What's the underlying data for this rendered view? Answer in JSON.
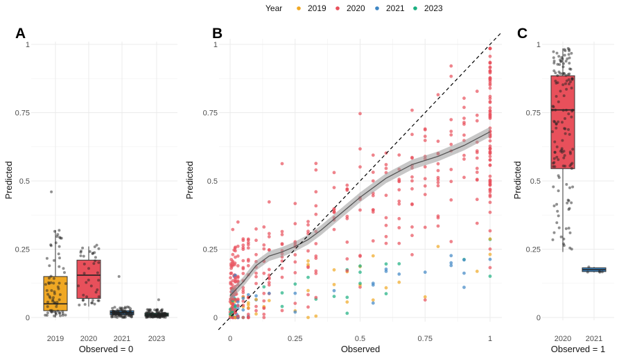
{
  "legend": {
    "title": "Year",
    "entries": [
      {
        "label": "2019",
        "color": "#F0A824"
      },
      {
        "label": "2020",
        "color": "#E8505B"
      },
      {
        "label": "2021",
        "color": "#3E86C4"
      },
      {
        "label": "2023",
        "color": "#1BAF80"
      }
    ]
  },
  "chart_data": [
    {
      "panel": "A",
      "type": "box",
      "xlabel": "Observed = 0",
      "ylabel": "Predicted",
      "ylim": [
        0,
        1
      ],
      "yticks": [
        "0",
        "0.25",
        "0.5",
        "0.75",
        "1"
      ],
      "categories": [
        "2019",
        "2020",
        "2021",
        "2023"
      ],
      "boxes": [
        {
          "category": "2019",
          "color": "#F0A824",
          "q1": 0.025,
          "median": 0.05,
          "q3": 0.15,
          "whisker_low": 0.0,
          "whisker_high": 0.32,
          "n_points": 70,
          "point_max": 0.46
        },
        {
          "category": "2020",
          "color": "#E8505B",
          "q1": 0.07,
          "median": 0.155,
          "q3": 0.21,
          "whisker_low": 0.04,
          "whisker_high": 0.26,
          "n_points": 40,
          "point_max": 0.265
        },
        {
          "category": "2021",
          "color": "#3E86C4",
          "q1": 0.01,
          "median": 0.018,
          "q3": 0.025,
          "whisker_low": 0.0,
          "whisker_high": 0.04,
          "n_points": 80,
          "point_max": 0.15
        },
        {
          "category": "2023",
          "color": "#1BAF80",
          "q1": 0.005,
          "median": 0.01,
          "q3": 0.016,
          "whisker_low": 0.0,
          "whisker_high": 0.03,
          "n_points": 100,
          "point_max": 0.065
        }
      ]
    },
    {
      "panel": "B",
      "type": "scatter",
      "xlabel": "Observed",
      "ylabel": "Predicted",
      "xlim": [
        0,
        1
      ],
      "ylim": [
        0,
        1
      ],
      "xticks": [
        "0",
        "0.25",
        "0.5",
        "0.75",
        "1"
      ],
      "yticks": [
        "0",
        "0.25",
        "0.5",
        "0.75",
        "1"
      ],
      "x_levels": [
        0,
        0.01,
        0.02,
        0.03,
        0.05,
        0.07,
        0.1,
        0.13,
        0.15,
        0.2,
        0.25,
        0.3,
        0.33,
        0.4,
        0.45,
        0.5,
        0.55,
        0.6,
        0.65,
        0.7,
        0.75,
        0.8,
        0.85,
        0.9,
        0.95,
        1
      ],
      "reference_line": "y = x (dashed)",
      "smooth_line": {
        "x": [
          0,
          0.05,
          0.1,
          0.15,
          0.2,
          0.25,
          0.3,
          0.35,
          0.4,
          0.5,
          0.6,
          0.7,
          0.8,
          0.9,
          1
        ],
        "y": [
          0.08,
          0.13,
          0.19,
          0.225,
          0.24,
          0.26,
          0.285,
          0.32,
          0.36,
          0.44,
          0.51,
          0.56,
          0.59,
          0.63,
          0.68
        ],
        "band_halfwidth": 0.018
      },
      "series_color_share": [
        {
          "name": "2020",
          "color": "#E8505B",
          "share": 0.76
        },
        {
          "name": "2019",
          "color": "#F0A824",
          "share": 0.09
        },
        {
          "name": "2021",
          "color": "#3E86C4",
          "share": 0.07
        },
        {
          "name": "2023",
          "color": "#1BAF80",
          "share": 0.08
        }
      ]
    },
    {
      "panel": "C",
      "type": "box",
      "xlabel": "Observed = 1",
      "ylabel": "Predicted",
      "ylim": [
        0,
        1
      ],
      "yticks": [
        "0",
        "0.25",
        "0.5",
        "0.75",
        "1"
      ],
      "categories": [
        "2020",
        "2021"
      ],
      "boxes": [
        {
          "category": "2020",
          "color": "#E8505B",
          "q1": 0.545,
          "median": 0.76,
          "q3": 0.885,
          "whisker_low": 0.24,
          "whisker_high": 0.985,
          "n_points": 140,
          "point_max": 0.985
        },
        {
          "category": "2021",
          "color": "#3E86C4",
          "q1": 0.168,
          "median": 0.175,
          "q3": 0.182,
          "whisker_low": 0.165,
          "whisker_high": 0.185,
          "n_points": 5,
          "point_max": 0.185
        }
      ]
    }
  ],
  "panel_labels": [
    "A",
    "B",
    "C"
  ]
}
